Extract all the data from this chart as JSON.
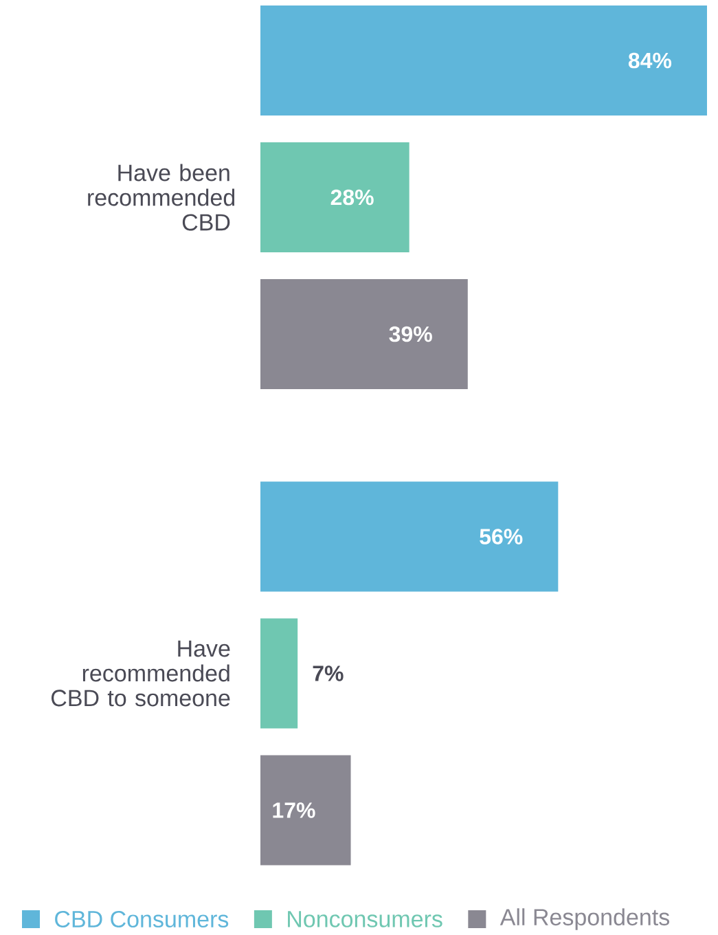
{
  "chart_data": {
    "type": "bar",
    "orientation": "horizontal",
    "categories": [
      "Have been recommended CBD",
      "Have recommended CBD to someone"
    ],
    "series": [
      {
        "name": "CBD Consumers",
        "color": "#5fb6da",
        "values": [
          84,
          56
        ],
        "value_labels": [
          "84%",
          "56%"
        ]
      },
      {
        "name": "Nonconsumers",
        "color": "#6fc7b1",
        "values": [
          28,
          7
        ],
        "value_labels": [
          "28%",
          "7%"
        ]
      },
      {
        "name": "All Respondents",
        "color": "#8a8892",
        "values": [
          39,
          17
        ],
        "value_labels": [
          "39%",
          "17%"
        ]
      }
    ],
    "legend": "bottom"
  }
}
